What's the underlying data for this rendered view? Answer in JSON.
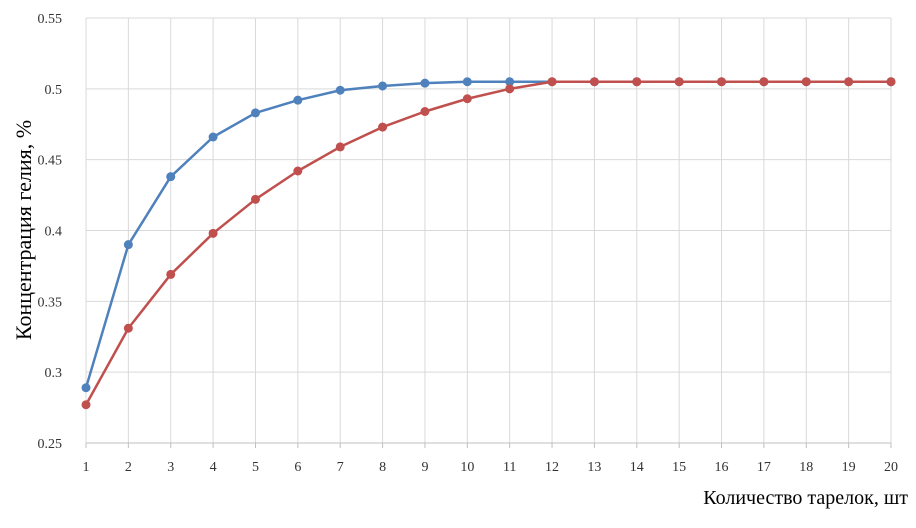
{
  "chart_data": {
    "type": "line",
    "title": "",
    "xlabel": "Количество тарелок, шт",
    "ylabel": "Концентрация гелия, %",
    "x": [
      1,
      2,
      3,
      4,
      5,
      6,
      7,
      8,
      9,
      10,
      11,
      12,
      13,
      14,
      15,
      16,
      17,
      18,
      19,
      20
    ],
    "ylim": [
      0.25,
      0.55
    ],
    "yticks": [
      "0.25",
      "0.3",
      "0.35",
      "0.4",
      "0.45",
      "0.5",
      "0.55"
    ],
    "grid": "vertical and horizontal",
    "legend": "none",
    "series": [
      {
        "color": "#4f81bd",
        "values": [
          0.289,
          0.39,
          0.438,
          0.466,
          0.483,
          0.492,
          0.499,
          0.502,
          0.504,
          0.505,
          0.505,
          0.505,
          0.505,
          0.505,
          0.505,
          0.505,
          0.505,
          0.505,
          0.505,
          0.505
        ]
      },
      {
        "color": "#c0504d",
        "values": [
          0.277,
          0.331,
          0.369,
          0.398,
          0.422,
          0.442,
          0.459,
          0.473,
          0.484,
          0.493,
          0.5,
          0.505,
          0.505,
          0.505,
          0.505,
          0.505,
          0.505,
          0.505,
          0.505,
          0.505
        ]
      }
    ],
    "colors": {
      "grid": "#d9d9d9",
      "axis": "#bfbfbf"
    }
  }
}
